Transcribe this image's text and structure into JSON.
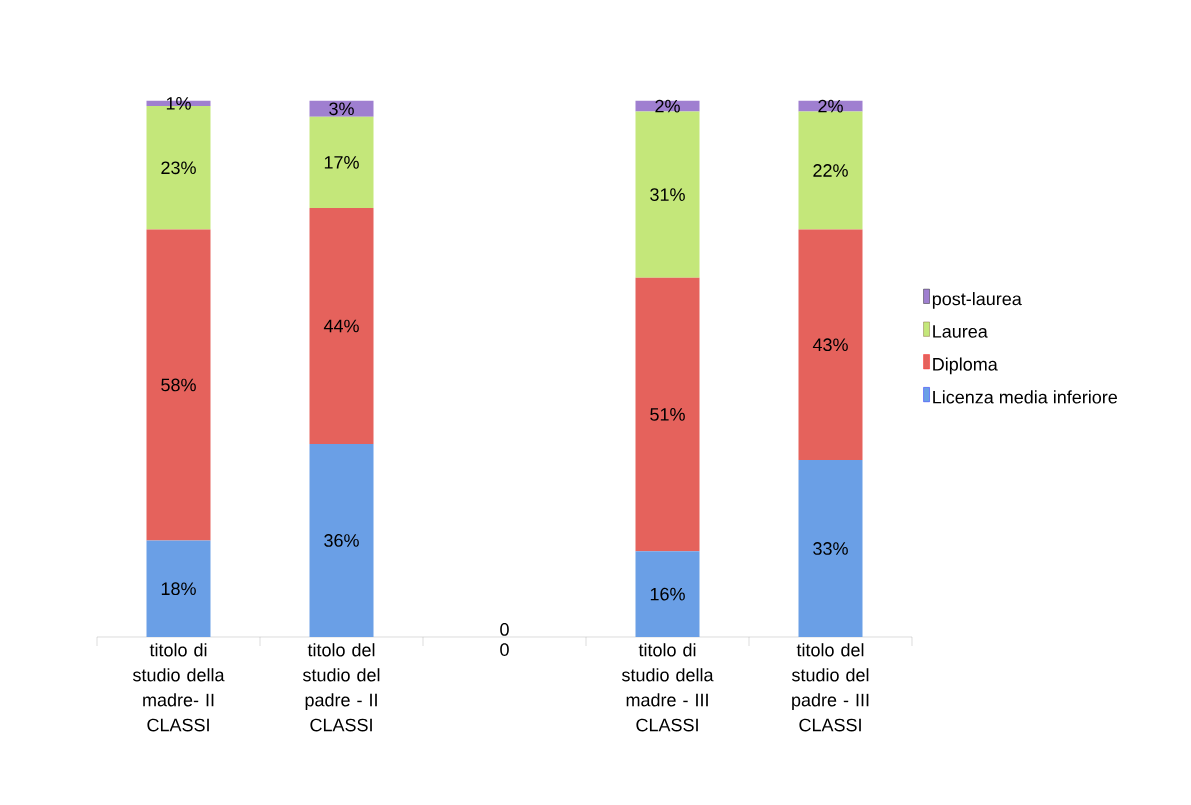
{
  "chart_data": {
    "type": "bar",
    "stacked": true,
    "legend": "right",
    "data_labels": false,
    "categories": [
      "titolo di studio della madre- II CLASSI",
      "titolo del studio del padre - II CLASSI",
      "0",
      "titolo di studio della madre - III CLASSI",
      "titolo del studio del padre - III CLASSI"
    ],
    "series": [
      {
        "name": "Licenza media inferiore",
        "color": "#6a9fe6",
        "values": [
          18,
          36,
          0,
          16,
          33
        ],
        "value_labels": [
          "18%",
          "36%",
          "0",
          "16%",
          "33%"
        ]
      },
      {
        "name": "Diploma",
        "color": "#e5625c",
        "values": [
          58,
          44,
          0,
          51,
          43
        ],
        "value_labels": [
          "58%",
          "44%",
          null,
          "51%",
          "43%"
        ]
      },
      {
        "name": "Laurea",
        "color": "#c4e77a",
        "values": [
          23,
          17,
          0,
          31,
          22
        ],
        "value_labels": [
          "23%",
          "17%",
          null,
          "31%",
          "22%"
        ]
      },
      {
        "name": "post-laurea",
        "color": "#9f7fd0",
        "values": [
          1,
          3,
          0,
          2,
          2
        ],
        "value_labels": [
          "1%",
          "3%",
          null,
          "2%",
          "2%"
        ]
      }
    ]
  }
}
